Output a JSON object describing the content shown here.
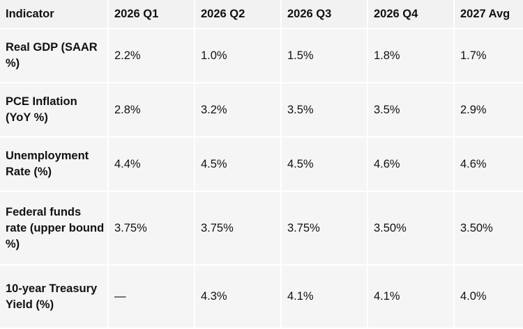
{
  "table": {
    "headers": [
      "Indicator",
      "2026 Q1",
      "2026 Q2",
      "2026 Q3",
      "2026 Q4",
      "2027 Avg"
    ],
    "rows": [
      {
        "indicator": "Real GDP (SAAR %)",
        "values": [
          "2.2%",
          "1.0%",
          "1.5%",
          "1.8%",
          "1.7%"
        ]
      },
      {
        "indicator": "PCE Inflation (YoY %)",
        "values": [
          "2.8%",
          "3.2%",
          "3.5%",
          "3.5%",
          "2.9%"
        ]
      },
      {
        "indicator": "Unemployment Rate (%)",
        "values": [
          "4.4%",
          "4.5%",
          "4.5%",
          "4.6%",
          "4.6%"
        ]
      },
      {
        "indicator": "Federal funds rate (upper bound %)",
        "values": [
          "3.75%",
          "3.75%",
          "3.75%",
          "3.50%",
          "3.50%"
        ]
      },
      {
        "indicator": "10-year Treasury Yield (%)",
        "values": [
          "—",
          "4.3%",
          "4.1%",
          "4.1%",
          "4.0%"
        ]
      }
    ]
  }
}
